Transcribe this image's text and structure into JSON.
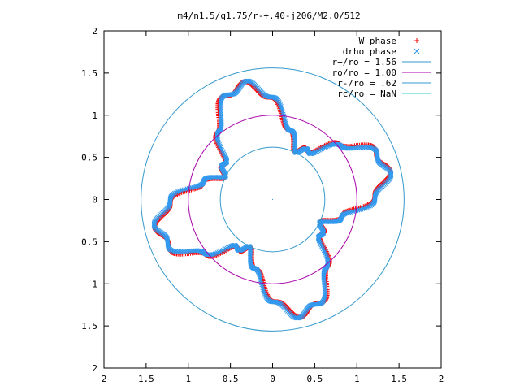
{
  "chart_data": {
    "type": "scatter",
    "title": "m4/n1.5/q1.75/r-+.40-j206/M2.0/512",
    "xlabel": "",
    "ylabel": "",
    "xlim": [
      -2,
      2
    ],
    "ylim": [
      -2,
      2
    ],
    "x_ticks": [
      -2,
      -1.5,
      -1,
      -0.5,
      0,
      0.5,
      1,
      1.5,
      2
    ],
    "x_tick_labels": [
      "2",
      "1.5",
      "1",
      "0.5",
      "0",
      "0.5",
      "1",
      "1.5",
      "2"
    ],
    "y_ticks": [
      2,
      1.5,
      1,
      0.5,
      0,
      -0.5,
      -1,
      -1.5,
      -2
    ],
    "y_tick_labels": [
      "2",
      "1.5",
      "1",
      "0.5",
      "0",
      "0.5",
      "1",
      "1.5",
      "2"
    ],
    "grid": false,
    "legend_position": "top-right",
    "series": [
      {
        "name": "W phase",
        "kind": "points",
        "marker": "+",
        "color": "#ff0000",
        "band": [
          0.66,
          1.4
        ],
        "symmetry": 4,
        "phase_deg": 22
      },
      {
        "name": "drho phase",
        "kind": "points",
        "marker": "x",
        "color": "#3399ee",
        "band": [
          0.66,
          1.4
        ],
        "symmetry": 4,
        "phase_deg": 28
      },
      {
        "name": "r+/ro = 1.56",
        "kind": "circle",
        "radius": 1.56,
        "color": "#3399cc"
      },
      {
        "name": "ro/ro = 1.00",
        "kind": "circle",
        "radius": 1.0,
        "color": "#aa00aa"
      },
      {
        "name": "r-/ro = .62",
        "kind": "circle",
        "radius": 0.62,
        "color": "#3399cc"
      },
      {
        "name": "rc/ro = NaN",
        "kind": "circle",
        "radius": null,
        "color": "#33cccc"
      }
    ]
  }
}
